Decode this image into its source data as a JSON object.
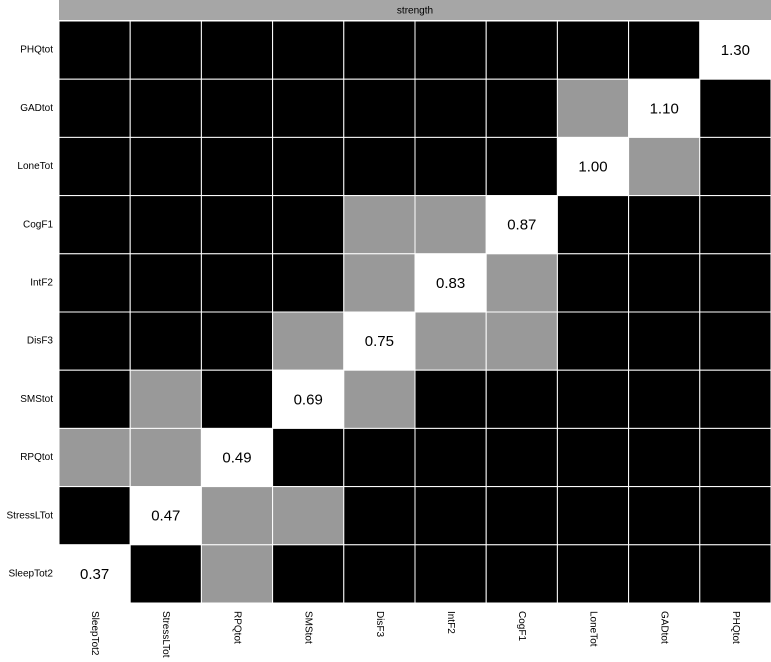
{
  "chart_data": {
    "type": "heatmap",
    "title": "strength",
    "categories": [
      "SleepTot2",
      "StressLTot",
      "RPQtot",
      "SMStot",
      "DisF3",
      "IntF2",
      "CogF1",
      "LoneTot",
      "GADtot",
      "PHQtot"
    ],
    "y_categories": [
      "PHQtot",
      "GADtot",
      "LoneTot",
      "CogF1",
      "IntF2",
      "DisF3",
      "SMStot",
      "RPQtot",
      "StressLTot",
      "SleepTot2"
    ],
    "values": [
      0.37,
      0.47,
      0.49,
      0.69,
      0.75,
      0.83,
      0.87,
      1.0,
      1.1,
      1.3
    ],
    "value_labels": [
      "0.37",
      "0.47",
      "0.49",
      "0.69",
      "0.75",
      "0.83",
      "0.87",
      "1.00",
      "1.10",
      "1.30"
    ],
    "cell_colors": [
      [
        "#000000",
        "#000000",
        "#000000",
        "#000000",
        "#000000",
        "#000000",
        "#000000",
        "#000000",
        "#000000",
        "#ffffff"
      ],
      [
        "#000000",
        "#000000",
        "#000000",
        "#000000",
        "#000000",
        "#000000",
        "#000000",
        "#999999",
        "#ffffff",
        "#000000"
      ],
      [
        "#000000",
        "#000000",
        "#000000",
        "#000000",
        "#000000",
        "#000000",
        "#000000",
        "#ffffff",
        "#999999",
        "#000000"
      ],
      [
        "#000000",
        "#000000",
        "#000000",
        "#000000",
        "#999999",
        "#999999",
        "#ffffff",
        "#000000",
        "#000000",
        "#000000"
      ],
      [
        "#000000",
        "#000000",
        "#000000",
        "#000000",
        "#999999",
        "#ffffff",
        "#999999",
        "#000000",
        "#000000",
        "#000000"
      ],
      [
        "#000000",
        "#000000",
        "#000000",
        "#999999",
        "#ffffff",
        "#999999",
        "#999999",
        "#000000",
        "#000000",
        "#000000"
      ],
      [
        "#000000",
        "#999999",
        "#000000",
        "#ffffff",
        "#999999",
        "#000000",
        "#000000",
        "#000000",
        "#000000",
        "#000000"
      ],
      [
        "#999999",
        "#999999",
        "#ffffff",
        "#000000",
        "#000000",
        "#000000",
        "#000000",
        "#000000",
        "#000000",
        "#000000"
      ],
      [
        "#000000",
        "#ffffff",
        "#999999",
        "#999999",
        "#000000",
        "#000000",
        "#000000",
        "#000000",
        "#000000",
        "#000000"
      ],
      [
        "#ffffff",
        "#000000",
        "#999999",
        "#000000",
        "#000000",
        "#000000",
        "#000000",
        "#000000",
        "#000000",
        "#000000"
      ]
    ],
    "strip_color": "#a6a6a6"
  }
}
